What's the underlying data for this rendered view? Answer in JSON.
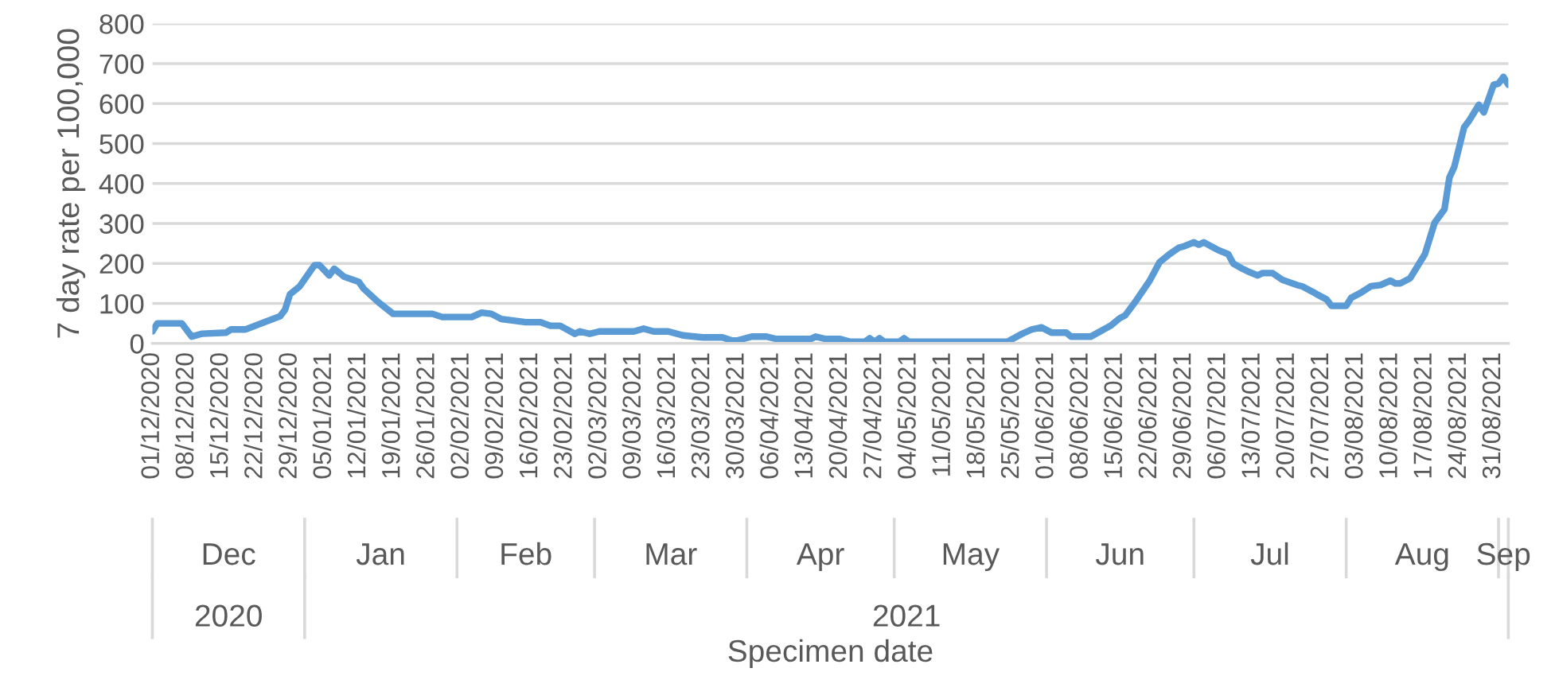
{
  "chart_data": {
    "type": "line",
    "ylabel": "7 day rate per 100,000",
    "x": [
      "2020-12-01",
      "2020-12-02",
      "2020-12-07",
      "2020-12-09",
      "2020-12-11",
      "2020-12-16",
      "2020-12-17",
      "2020-12-20",
      "2020-12-24",
      "2020-12-27",
      "2020-12-28",
      "2020-12-29",
      "2020-12-31",
      "2021-01-03",
      "2021-01-04",
      "2021-01-06",
      "2021-01-07",
      "2021-01-09",
      "2021-01-12",
      "2021-01-13",
      "2021-01-16",
      "2021-01-19",
      "2021-01-27",
      "2021-01-29",
      "2021-02-04",
      "2021-02-06",
      "2021-02-08",
      "2021-02-10",
      "2021-02-15",
      "2021-02-18",
      "2021-02-20",
      "2021-02-22",
      "2021-02-25",
      "2021-02-26",
      "2021-02-28",
      "2021-03-02",
      "2021-03-09",
      "2021-03-11",
      "2021-03-13",
      "2021-03-16",
      "2021-03-19",
      "2021-03-23",
      "2021-03-27",
      "2021-03-29",
      "2021-03-30",
      "2021-04-02",
      "2021-04-05",
      "2021-04-07",
      "2021-04-14",
      "2021-04-15",
      "2021-04-17",
      "2021-04-20",
      "2021-04-22",
      "2021-04-25",
      "2021-04-26",
      "2021-04-27",
      "2021-04-28",
      "2021-04-29",
      "2021-05-02",
      "2021-05-03",
      "2021-05-04",
      "2021-05-24",
      "2021-05-27",
      "2021-05-29",
      "2021-05-31",
      "2021-06-02",
      "2021-06-05",
      "2021-06-06",
      "2021-06-10",
      "2021-06-14",
      "2021-06-16",
      "2021-06-17",
      "2021-06-19",
      "2021-06-22",
      "2021-06-24",
      "2021-06-26",
      "2021-06-28",
      "2021-06-29",
      "2021-07-01",
      "2021-07-02",
      "2021-07-03",
      "2021-07-06",
      "2021-07-08",
      "2021-07-09",
      "2021-07-11",
      "2021-07-12",
      "2021-07-14",
      "2021-07-15",
      "2021-07-17",
      "2021-07-19",
      "2021-07-22",
      "2021-07-23",
      "2021-07-25",
      "2021-07-26",
      "2021-07-28",
      "2021-07-29",
      "2021-08-01",
      "2021-08-02",
      "2021-08-04",
      "2021-08-06",
      "2021-08-08",
      "2021-08-10",
      "2021-08-11",
      "2021-08-12",
      "2021-08-14",
      "2021-08-15",
      "2021-08-17",
      "2021-08-19",
      "2021-08-21",
      "2021-08-22",
      "2021-08-23",
      "2021-08-25",
      "2021-08-26",
      "2021-08-28",
      "2021-08-29",
      "2021-08-31",
      "2021-09-01",
      "2021-09-02",
      "2021-09-03"
    ],
    "series": [
      {
        "color": "#5b9bd5",
        "values": [
          30,
          50,
          50,
          17,
          24,
          27,
          35,
          35,
          54,
          68,
          84,
          123,
          143,
          196,
          196,
          170,
          187,
          167,
          154,
          137,
          103,
          74,
          74,
          66,
          66,
          77,
          74,
          61,
          53,
          53,
          44,
          44,
          24,
          30,
          24,
          30,
          30,
          37,
          30,
          30,
          20,
          15,
          15,
          7,
          7,
          17,
          17,
          11,
          11,
          17,
          11,
          11,
          4,
          4,
          13,
          4,
          13,
          4,
          4,
          13,
          4,
          4,
          24,
          35,
          40,
          27,
          27,
          17,
          17,
          44,
          64,
          70,
          103,
          157,
          203,
          223,
          240,
          243,
          253,
          247,
          253,
          233,
          223,
          200,
          186,
          180,
          170,
          176,
          176,
          159,
          146,
          143,
          130,
          123,
          110,
          94,
          94,
          114,
          127,
          143,
          146,
          157,
          150,
          150,
          163,
          183,
          223,
          302,
          336,
          415,
          442,
          541,
          557,
          597,
          578,
          647,
          650,
          667,
          647
        ]
      }
    ],
    "xlim": [
      "2020-12-01",
      "2021-09-03"
    ],
    "xticks": [
      {
        "value": "2020-12-01",
        "label": "01/12/2020"
      },
      {
        "value": "2020-12-08",
        "label": "08/12/2020"
      },
      {
        "value": "2020-12-15",
        "label": "15/12/2020"
      },
      {
        "value": "2020-12-22",
        "label": "22/12/2020"
      },
      {
        "value": "2020-12-29",
        "label": "29/12/2020"
      },
      {
        "value": "2021-01-05",
        "label": "05/01/2021"
      },
      {
        "value": "2021-01-12",
        "label": "12/01/2021"
      },
      {
        "value": "2021-01-19",
        "label": "19/01/2021"
      },
      {
        "value": "2021-01-26",
        "label": "26/01/2021"
      },
      {
        "value": "2021-02-02",
        "label": "02/02/2021"
      },
      {
        "value": "2021-02-09",
        "label": "09/02/2021"
      },
      {
        "value": "2021-02-16",
        "label": "16/02/2021"
      },
      {
        "value": "2021-02-23",
        "label": "23/02/2021"
      },
      {
        "value": "2021-03-02",
        "label": "02/03/2021"
      },
      {
        "value": "2021-03-09",
        "label": "09/03/2021"
      },
      {
        "value": "2021-03-16",
        "label": "16/03/2021"
      },
      {
        "value": "2021-03-23",
        "label": "23/03/2021"
      },
      {
        "value": "2021-03-30",
        "label": "30/03/2021"
      },
      {
        "value": "2021-04-06",
        "label": "06/04/2021"
      },
      {
        "value": "2021-04-13",
        "label": "13/04/2021"
      },
      {
        "value": "2021-04-20",
        "label": "20/04/2021"
      },
      {
        "value": "2021-04-27",
        "label": "27/04/2021"
      },
      {
        "value": "2021-05-04",
        "label": "04/05/2021"
      },
      {
        "value": "2021-05-11",
        "label": "11/05/2021"
      },
      {
        "value": "2021-05-18",
        "label": "18/05/2021"
      },
      {
        "value": "2021-05-25",
        "label": "25/05/2021"
      },
      {
        "value": "2021-06-01",
        "label": "01/06/2021"
      },
      {
        "value": "2021-06-08",
        "label": "08/06/2021"
      },
      {
        "value": "2021-06-15",
        "label": "15/06/2021"
      },
      {
        "value": "2021-06-22",
        "label": "22/06/2021"
      },
      {
        "value": "2021-06-29",
        "label": "29/06/2021"
      },
      {
        "value": "2021-07-06",
        "label": "06/07/2021"
      },
      {
        "value": "2021-07-13",
        "label": "13/07/2021"
      },
      {
        "value": "2021-07-20",
        "label": "20/07/2021"
      },
      {
        "value": "2021-07-27",
        "label": "27/07/2021"
      },
      {
        "value": "2021-08-03",
        "label": "03/08/2021"
      },
      {
        "value": "2021-08-10",
        "label": "10/08/2021"
      },
      {
        "value": "2021-08-17",
        "label": "17/08/2021"
      },
      {
        "value": "2021-08-24",
        "label": "24/08/2021"
      },
      {
        "value": "2021-08-31",
        "label": "31/08/2021"
      }
    ],
    "ylim": [
      0,
      800
    ],
    "yticks": [
      0,
      100,
      200,
      300,
      400,
      500,
      600,
      700,
      800
    ],
    "grid": "y",
    "annotations": [
      "Dec",
      "Jan",
      "Feb",
      "Mar",
      "Apr",
      "May",
      "Jun",
      "Jul",
      "Aug",
      "Sep",
      "2020",
      "2021",
      "Specimen date"
    ]
  }
}
